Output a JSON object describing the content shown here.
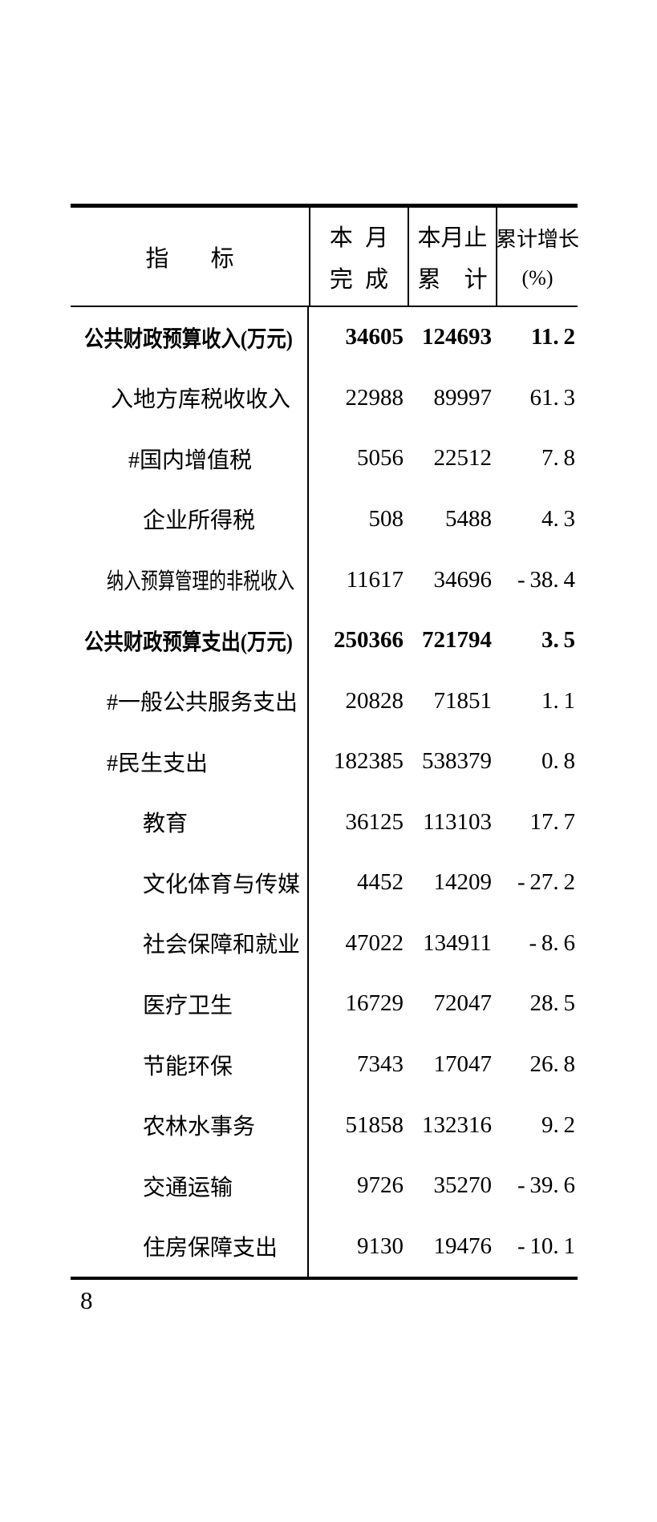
{
  "page": {
    "number": "8",
    "background": "#ffffff",
    "text_color": "#000000"
  },
  "table": {
    "header": {
      "columns": [
        {
          "id": "indicator",
          "line1": "指 标",
          "line2": ""
        },
        {
          "id": "month",
          "line1": "本 月",
          "line2": "完 成"
        },
        {
          "id": "cumulative",
          "line1": "本月止",
          "line2": "累 计"
        },
        {
          "id": "growth",
          "line1": "累计增长",
          "line2": "(%)"
        }
      ]
    },
    "rows": [
      {
        "label": "公共财政预算收入(万元)",
        "month": "34605",
        "cumulative": "124693",
        "growth": "11.2",
        "bold": true,
        "condensed": false,
        "indent": 0
      },
      {
        "label": "入地方库税收收入",
        "month": "22988",
        "cumulative": "89997",
        "growth": "61.3",
        "bold": false,
        "condensed": false,
        "indent": 2
      },
      {
        "label": "#国内增值税",
        "month": "5056",
        "cumulative": "22512",
        "growth": "7.8",
        "bold": false,
        "condensed": false,
        "indent": 3
      },
      {
        "label": "企业所得税",
        "month": "508",
        "cumulative": "5488",
        "growth": "4.3",
        "bold": false,
        "condensed": false,
        "indent": 4
      },
      {
        "label": "纳入预算管理的非税收入",
        "month": "11617",
        "cumulative": "34696",
        "growth": "-38.4",
        "bold": false,
        "condensed": true,
        "indent": 1
      },
      {
        "label": "公共财政预算支出(万元)",
        "month": "250366",
        "cumulative": "721794",
        "growth": "3.5",
        "bold": true,
        "condensed": false,
        "indent": 0
      },
      {
        "label": "#一般公共服务支出",
        "month": "20828",
        "cumulative": "71851",
        "growth": "1.1",
        "bold": false,
        "condensed": false,
        "indent": 1
      },
      {
        "label": "#民生支出",
        "month": "182385",
        "cumulative": "538379",
        "growth": "0.8",
        "bold": false,
        "condensed": false,
        "indent": 1
      },
      {
        "label": "教育",
        "month": "36125",
        "cumulative": "113103",
        "growth": "17.7",
        "bold": false,
        "condensed": false,
        "indent": 4
      },
      {
        "label": "文化体育与传媒",
        "month": "4452",
        "cumulative": "14209",
        "growth": "-27.2",
        "bold": false,
        "condensed": false,
        "indent": 4
      },
      {
        "label": "社会保障和就业",
        "month": "47022",
        "cumulative": "134911",
        "growth": "-8.6",
        "bold": false,
        "condensed": false,
        "indent": 4
      },
      {
        "label": "医疗卫生",
        "month": "16729",
        "cumulative": "72047",
        "growth": "28.5",
        "bold": false,
        "condensed": false,
        "indent": 4
      },
      {
        "label": "节能环保",
        "month": "7343",
        "cumulative": "17047",
        "growth": "26.8",
        "bold": false,
        "condensed": false,
        "indent": 4
      },
      {
        "label": "农林水事务",
        "month": "51858",
        "cumulative": "132316",
        "growth": "9.2",
        "bold": false,
        "condensed": false,
        "indent": 4
      },
      {
        "label": "交通运输",
        "month": "9726",
        "cumulative": "35270",
        "growth": "-39.6",
        "bold": false,
        "condensed": false,
        "indent": 4
      },
      {
        "label": "住房保障支出",
        "month": "9130",
        "cumulative": "19476",
        "growth": "-10.1",
        "bold": false,
        "condensed": false,
        "indent": 4
      }
    ]
  }
}
